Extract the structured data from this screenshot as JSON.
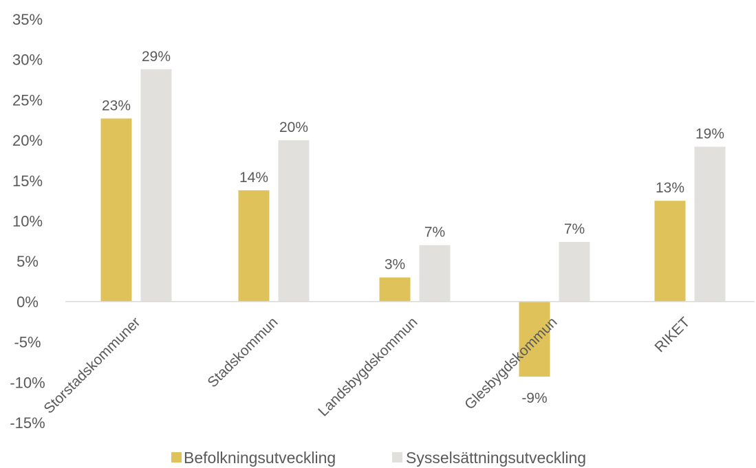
{
  "chart_data": {
    "type": "bar",
    "categories": [
      "Storstadskommuner",
      "Stadskommun",
      "Landsbygdskommun",
      "Glesbygdskommun",
      "RIKET"
    ],
    "series": [
      {
        "name": "Befolkningsutveckling",
        "values": [
          22.7,
          13.8,
          3.0,
          -9.3,
          12.5
        ],
        "labels": [
          "23%",
          "14%",
          "3%",
          "-9%",
          "13%"
        ],
        "color": "#dfc35a"
      },
      {
        "name": "Sysselsättningsutveckling",
        "values": [
          28.8,
          20.0,
          7.0,
          7.4,
          19.2
        ],
        "labels": [
          "29%",
          "20%",
          "7%",
          "7%",
          "19%"
        ],
        "color": "#e1e0dc"
      }
    ],
    "yticks": [
      "35%",
      "30%",
      "25%",
      "20%",
      "15%",
      "10%",
      "5%",
      "0%",
      "-5%",
      "-10%",
      "-15%"
    ],
    "ytick_values": [
      35,
      30,
      25,
      20,
      15,
      10,
      5,
      0,
      -5,
      -10,
      -15
    ],
    "ylim": [
      -15,
      35
    ],
    "legend_position": "bottom",
    "grid": false,
    "axis_color": "#d9d9d9"
  }
}
